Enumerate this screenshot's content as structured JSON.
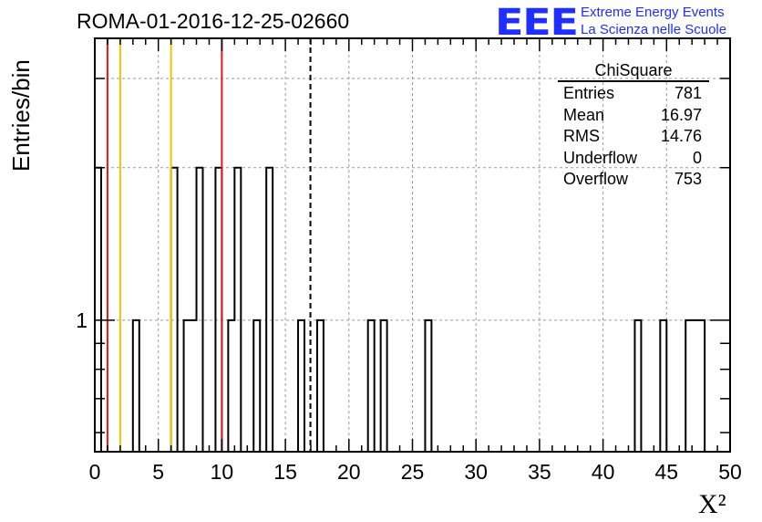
{
  "header": {
    "title": "ROMA-01-2016-12-25-02660",
    "logo_mark": "EEE",
    "logo_line1": "Extreme Energy Events",
    "logo_line2": "La Scienza nelle Scuole"
  },
  "stats_box": {
    "title": "ChiSquare",
    "rows": [
      {
        "label": "Entries",
        "value": "781"
      },
      {
        "label": "Mean",
        "value": "16.97"
      },
      {
        "label": "RMS",
        "value": "14.76"
      },
      {
        "label": "Underflow",
        "value": "0"
      },
      {
        "label": "Overflow",
        "value": "753"
      }
    ]
  },
  "chart_data": {
    "type": "bar",
    "histogram": "step",
    "xlabel": "X²",
    "ylabel": "Entries/bin",
    "xlim": [
      0,
      50
    ],
    "ylim_log": [
      0.55,
      3.6
    ],
    "log_y": true,
    "bin_width": 0.5,
    "grid": true,
    "x_ticks": [
      0,
      5,
      10,
      15,
      20,
      25,
      30,
      35,
      40,
      45,
      50
    ],
    "x_tick_labels": [
      "0",
      "5",
      "10",
      "15",
      "20",
      "25",
      "30",
      "35",
      "40",
      "45",
      "50"
    ],
    "y_tick_labels": [
      {
        "value": 1,
        "label": "1"
      }
    ],
    "bins": [
      {
        "x": 0.0,
        "count": 2
      },
      {
        "x": 3.0,
        "count": 1
      },
      {
        "x": 6.0,
        "count": 2
      },
      {
        "x": 7.0,
        "count": 1
      },
      {
        "x": 7.5,
        "count": 1
      },
      {
        "x": 8.0,
        "count": 2
      },
      {
        "x": 9.5,
        "count": 2
      },
      {
        "x": 10.5,
        "count": 1
      },
      {
        "x": 11.0,
        "count": 2
      },
      {
        "x": 12.5,
        "count": 1
      },
      {
        "x": 13.5,
        "count": 2
      },
      {
        "x": 16.0,
        "count": 1
      },
      {
        "x": 17.5,
        "count": 1
      },
      {
        "x": 21.5,
        "count": 1
      },
      {
        "x": 22.5,
        "count": 1
      },
      {
        "x": 26.0,
        "count": 1
      },
      {
        "x": 42.5,
        "count": 1
      },
      {
        "x": 44.5,
        "count": 1
      },
      {
        "x": 46.5,
        "count": 1
      },
      {
        "x": 47.0,
        "count": 1
      },
      {
        "x": 47.5,
        "count": 1
      }
    ],
    "vertical_lines": [
      {
        "x": 1.0,
        "color": "#e31a1c",
        "style": "solid"
      },
      {
        "x": 2.0,
        "color": "#f5c400",
        "style": "solid"
      },
      {
        "x": 6.0,
        "color": "#f5c400",
        "style": "solid"
      },
      {
        "x": 10.0,
        "color": "#e31a1c",
        "style": "solid"
      },
      {
        "x": 16.97,
        "color": "#000000",
        "style": "dashed"
      }
    ]
  }
}
